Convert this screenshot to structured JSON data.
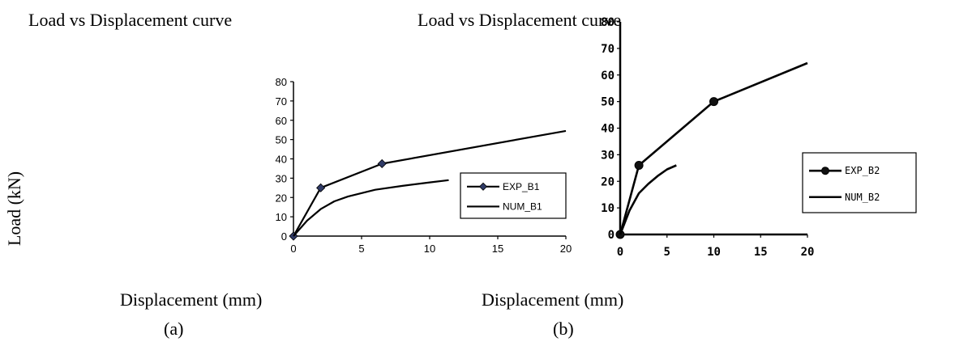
{
  "ylabel": "Load (kN)",
  "colors": {
    "ink": "#000000",
    "marker_a": "#2f3a66",
    "marker_b": "#111111"
  },
  "chart_data": [
    {
      "type": "line",
      "title": "Load vs Displacement curve",
      "xlabel": "Displacement (mm)",
      "ylabel": "Load (kN)",
      "caption": "(a)",
      "xlim": [
        0,
        20
      ],
      "ylim": [
        0,
        80
      ],
      "xticks": [
        0,
        5,
        10,
        15,
        20
      ],
      "yticks": [
        0,
        10,
        20,
        30,
        40,
        50,
        60,
        70,
        80
      ],
      "grid": false,
      "legend": "right",
      "series": [
        {
          "name": "EXP_B1",
          "marker": "diamond",
          "x": [
            0,
            2,
            6.5,
            20
          ],
          "y": [
            0,
            25,
            37.5,
            54.5
          ],
          "markers_on": [
            0,
            1,
            2
          ]
        },
        {
          "name": "NUM_B1",
          "marker": "none",
          "x": [
            0,
            1,
            2,
            3,
            4,
            6,
            8,
            10,
            11.4
          ],
          "y": [
            0,
            8,
            14,
            18,
            20.5,
            24,
            26,
            27.8,
            29
          ]
        }
      ]
    },
    {
      "type": "line",
      "title": "Load vs Displacement curve",
      "xlabel": "Displacement (mm)",
      "ylabel": "",
      "caption": "(b)",
      "xlim": [
        0,
        20
      ],
      "ylim": [
        0,
        80
      ],
      "xticks": [
        0,
        5,
        10,
        15,
        20
      ],
      "yticks": [
        0,
        10,
        20,
        30,
        40,
        50,
        60,
        70,
        80
      ],
      "grid": false,
      "legend": "right",
      "series": [
        {
          "name": "EXP_B2",
          "marker": "circle",
          "x": [
            0,
            2,
            10,
            20
          ],
          "y": [
            0,
            26,
            50,
            64.5
          ],
          "markers_on": [
            0,
            1,
            2
          ]
        },
        {
          "name": "NUM_B2",
          "marker": "none",
          "x": [
            0,
            1,
            2,
            3,
            4,
            5,
            6
          ],
          "y": [
            0,
            9,
            15.5,
            19,
            22,
            24.5,
            26
          ]
        }
      ]
    }
  ]
}
